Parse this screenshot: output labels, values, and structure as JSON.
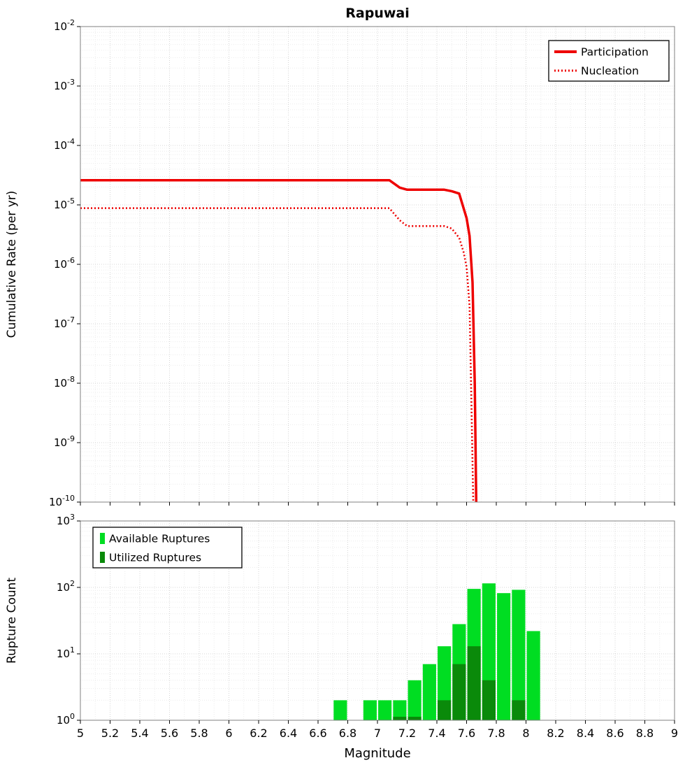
{
  "figure_title": "Rapuwai",
  "colors": {
    "line_red": "#ee0000",
    "available_green": "#00dd22",
    "utilized_green": "#0a8a0a",
    "grid_major": "#d4d4d4",
    "grid_minor": "#ececec",
    "plot_border": "#808080"
  },
  "chart_data": [
    {
      "type": "line",
      "title": "Rapuwai",
      "ylabel": "Cumulative Rate (per yr)",
      "xlabel": "",
      "x_range": [
        5,
        9
      ],
      "y_log_range": [
        -10,
        -2
      ],
      "y_tick_exponents": [
        -2,
        -3,
        -4,
        -5,
        -6,
        -7,
        -8,
        -9,
        -10
      ],
      "grid": true,
      "legend_position": "top-right",
      "series": [
        {
          "name": "Participation",
          "color": "#ee0000",
          "line_style": "solid",
          "line_width": 3.5,
          "points": [
            [
              5.0,
              2.6e-05
            ],
            [
              7.08,
              2.6e-05
            ],
            [
              7.15,
              1.95e-05
            ],
            [
              7.2,
              1.8e-05
            ],
            [
              7.45,
              1.8e-05
            ],
            [
              7.5,
              1.7e-05
            ],
            [
              7.55,
              1.55e-05
            ],
            [
              7.6,
              6e-06
            ],
            [
              7.62,
              3e-06
            ],
            [
              7.64,
              5e-07
            ],
            [
              7.655,
              1e-08
            ],
            [
              7.665,
              1e-10
            ]
          ]
        },
        {
          "name": "Nucleation",
          "color": "#ee0000",
          "line_style": "dotted",
          "line_width": 2.6,
          "points": [
            [
              5.0,
              8.8e-06
            ],
            [
              7.08,
              8.8e-06
            ],
            [
              7.15,
              5.5e-06
            ],
            [
              7.2,
              4.4e-06
            ],
            [
              7.45,
              4.4e-06
            ],
            [
              7.5,
              4e-06
            ],
            [
              7.55,
              2.8e-06
            ],
            [
              7.58,
              1.6e-06
            ],
            [
              7.6,
              9e-07
            ],
            [
              7.62,
              2e-07
            ],
            [
              7.63,
              1e-08
            ],
            [
              7.645,
              1e-10
            ]
          ]
        }
      ]
    },
    {
      "type": "bar",
      "title": "",
      "ylabel": "Rupture Count",
      "xlabel": "Magnitude",
      "x_range": [
        5,
        9
      ],
      "y_log_range": [
        0,
        3
      ],
      "y_tick_exponents": [
        3,
        2,
        1,
        0
      ],
      "x_tick_values": [
        5,
        5.2,
        5.4,
        5.6,
        5.8,
        6,
        6.2,
        6.4,
        6.6,
        6.8,
        7,
        7.2,
        7.4,
        7.6,
        7.8,
        8,
        8.2,
        8.4,
        8.6,
        8.8,
        9
      ],
      "x_tick_labels": [
        "5",
        "5.2",
        "5.4",
        "5.6",
        "5.8",
        "6",
        "6.2",
        "6.4",
        "6.6",
        "6.8",
        "7",
        "7.2",
        "7.4",
        "7.6",
        "7.8",
        "8",
        "8.2",
        "8.4",
        "8.6",
        "8.8",
        "9"
      ],
      "bin_width": 0.1,
      "grid": true,
      "legend_position": "top-left",
      "series": [
        {
          "name": "Available Ruptures",
          "color": "#00dd22",
          "bars": [
            [
              6.75,
              2
            ],
            [
              6.95,
              2
            ],
            [
              7.05,
              2
            ],
            [
              7.15,
              2
            ],
            [
              7.25,
              4
            ],
            [
              7.35,
              7
            ],
            [
              7.45,
              13
            ],
            [
              7.55,
              28
            ],
            [
              7.65,
              95
            ],
            [
              7.75,
              115
            ],
            [
              7.85,
              82
            ],
            [
              7.95,
              92
            ],
            [
              8.05,
              22
            ]
          ]
        },
        {
          "name": "Utilized Ruptures",
          "color": "#0a8a0a",
          "bars": [
            [
              7.15,
              1
            ],
            [
              7.25,
              1
            ],
            [
              7.45,
              2
            ],
            [
              7.55,
              7
            ],
            [
              7.65,
              13
            ],
            [
              7.75,
              4
            ],
            [
              7.95,
              2
            ]
          ]
        }
      ]
    }
  ]
}
